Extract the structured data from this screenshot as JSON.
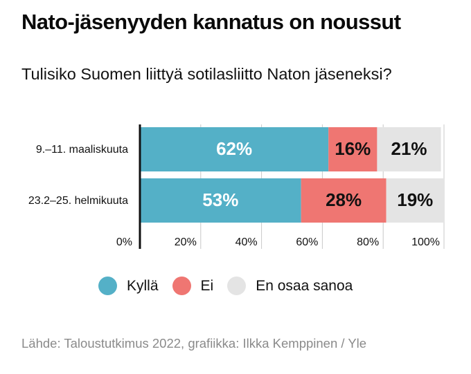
{
  "title": "Nato-jäsenyyden kannatus on noussut",
  "subtitle": "Tulisiko Suomen liittyä sotilasliitto Naton jäseneksi?",
  "source": "Lähde: Taloustutkimus 2022, grafiikka: Ilkka Kemppinen / Yle",
  "colors": {
    "kylla": "#54b0c7",
    "ei": "#ef7672",
    "eos": "#e4e4e4",
    "grid": "#c8c8c8",
    "axis": "#111111"
  },
  "legend": [
    {
      "label": "Kyllä",
      "color": "#54b0c7"
    },
    {
      "label": "Ei",
      "color": "#ef7672"
    },
    {
      "label": "En osaa sanoa",
      "color": "#e4e4e4"
    }
  ],
  "chart_data": {
    "type": "bar",
    "orientation": "horizontal",
    "stacked": true,
    "categories": [
      "9.–11. maaliskuuta",
      "23.2–25. helmikuuta"
    ],
    "series": [
      {
        "name": "Kyllä",
        "values": [
          62,
          53
        ],
        "labels": [
          "62%",
          "53%"
        ],
        "color": "#54b0c7",
        "label_color": "#ffffff"
      },
      {
        "name": "Ei",
        "values": [
          16,
          28
        ],
        "labels": [
          "16%",
          "28%"
        ],
        "color": "#ef7672",
        "label_color": "#111111"
      },
      {
        "name": "En osaa sanoa",
        "values": [
          21,
          19
        ],
        "labels": [
          "21%",
          "19%"
        ],
        "color": "#e4e4e4",
        "label_color": "#111111"
      }
    ],
    "xlim": [
      0,
      100
    ],
    "xticks": [
      0,
      20,
      40,
      60,
      80,
      100
    ],
    "xtick_labels": [
      "0%",
      "20%",
      "40%",
      "60%",
      "80%",
      "100%"
    ],
    "grid": true,
    "legend_position": "bottom"
  }
}
